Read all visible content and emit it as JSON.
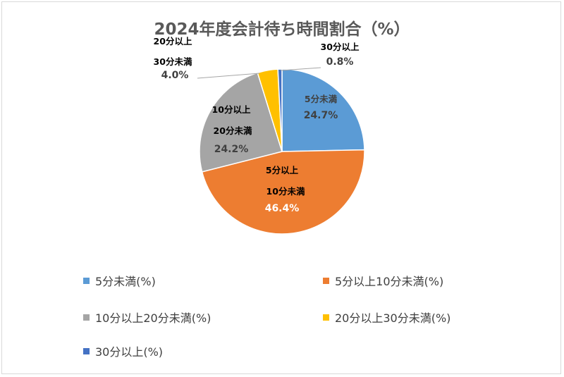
{
  "chart_data": {
    "type": "pie",
    "title": "2024年度会計待ち時間割合（%）",
    "categories": [
      "5分未満",
      "5分以上10分未満",
      "10分以上20分未満",
      "20分以上30分未満",
      "30分以上"
    ],
    "values": [
      24.7,
      46.4,
      24.2,
      4.0,
      0.8
    ],
    "value_labels": [
      "24.7%",
      "46.4%",
      "24.2%",
      "4.0%",
      "0.8%"
    ],
    "legend": [
      "5分未満(%)",
      "5分以上10分未満(%)",
      "10分以上20分未満(%)",
      "20分以上30分未満(%)",
      "30分以上(%)"
    ],
    "legend_position": "bottom",
    "colors": [
      "#5b9bd5",
      "#ed7d31",
      "#a5a5a5",
      "#ffc000",
      "#4472c4"
    ]
  }
}
